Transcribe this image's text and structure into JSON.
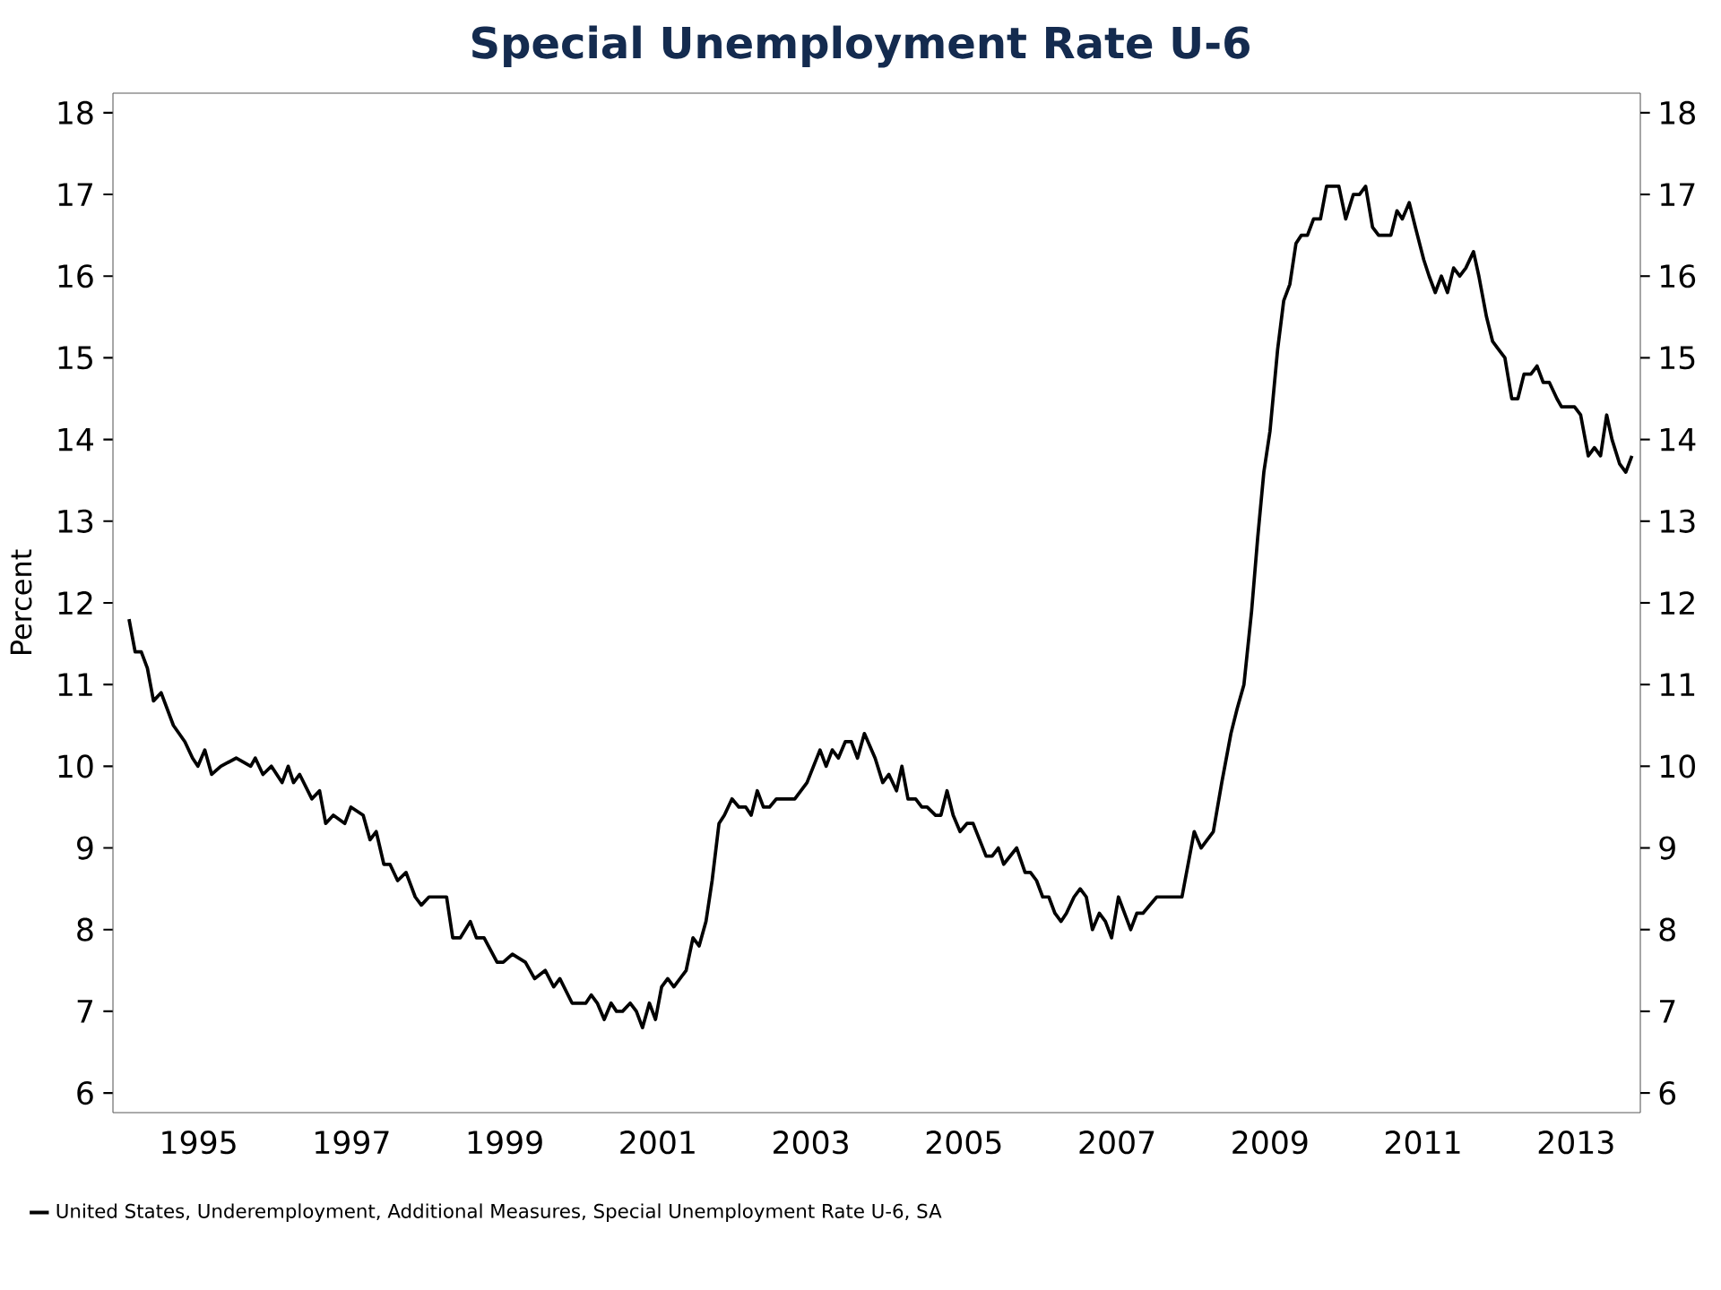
{
  "chart_data": {
    "type": "line",
    "title": "Special Unemployment Rate U-6",
    "ylabel": "Percent",
    "xlim": [
      1993.88,
      2013.84
    ],
    "ylim": [
      5.76,
      18.24
    ],
    "y2lim": [
      5.76,
      18.24
    ],
    "xticks": [
      1995,
      1997,
      1999,
      2001,
      2003,
      2005,
      2007,
      2009,
      2011,
      2013
    ],
    "yticks": [
      6,
      7,
      8,
      9,
      10,
      11,
      12,
      13,
      14,
      15,
      16,
      17,
      18
    ],
    "y2ticks": [
      6,
      7,
      8,
      9,
      10,
      11,
      12,
      13,
      14,
      15,
      16,
      17,
      18
    ],
    "legend": "bottom",
    "series": [
      {
        "name": "United States, Underemployment, Additional Measures, Special Unemployment Rate U-6, SA",
        "color": "#000000",
        "x": [
          1994.09,
          1994.17,
          1994.25,
          1994.33,
          1994.41,
          1994.51,
          1994.67,
          1994.82,
          1994.92,
          1994.99,
          1995.08,
          1995.17,
          1995.29,
          1995.49,
          1995.68,
          1995.74,
          1995.84,
          1995.95,
          1996.09,
          1996.17,
          1996.24,
          1996.32,
          1996.48,
          1996.58,
          1996.66,
          1996.76,
          1996.91,
          1996.99,
          1997.15,
          1997.24,
          1997.32,
          1997.42,
          1997.5,
          1997.6,
          1997.71,
          1997.83,
          1997.91,
          1998.01,
          1998.24,
          1998.32,
          1998.42,
          1998.55,
          1998.63,
          1998.73,
          1998.9,
          1998.98,
          1999.1,
          1999.27,
          1999.39,
          1999.53,
          1999.64,
          1999.72,
          1999.88,
          2000.06,
          2000.13,
          2000.21,
          2000.3,
          2000.39,
          2000.46,
          2000.54,
          2000.64,
          2000.72,
          2000.8,
          2000.89,
          2000.97,
          2001.05,
          2001.13,
          2001.21,
          2001.29,
          2001.37,
          2001.46,
          2001.54,
          2001.63,
          2001.71,
          2001.8,
          2001.87,
          2001.97,
          2002.06,
          2002.15,
          2002.22,
          2002.3,
          2002.38,
          2002.46,
          2002.55,
          2002.79,
          2002.95,
          2003.12,
          2003.2,
          2003.28,
          2003.36,
          2003.45,
          2003.53,
          2003.61,
          2003.7,
          2003.84,
          2003.94,
          2004.02,
          2004.12,
          2004.19,
          2004.27,
          2004.37,
          2004.45,
          2004.52,
          2004.63,
          2004.7,
          2004.78,
          2004.86,
          2004.95,
          2005.04,
          2005.12,
          2005.29,
          2005.37,
          2005.45,
          2005.52,
          2005.69,
          2005.8,
          2005.87,
          2005.95,
          2006.03,
          2006.11,
          2006.19,
          2006.27,
          2006.34,
          2006.44,
          2006.52,
          2006.6,
          2006.68,
          2006.77,
          2006.85,
          2006.93,
          2007.02,
          2007.18,
          2007.26,
          2007.34,
          2007.52,
          2007.79,
          2007.85,
          2007.93,
          2008.01,
          2008.1,
          2008.26,
          2008.37,
          2008.49,
          2008.57,
          2008.66,
          2008.76,
          2008.84,
          2008.92,
          2009.0,
          2009.1,
          2009.18,
          2009.26,
          2009.34,
          2009.41,
          2009.49,
          2009.57,
          2009.66,
          2009.74,
          2009.9,
          2009.99,
          2010.09,
          2010.17,
          2010.25,
          2010.34,
          2010.42,
          2010.58,
          2010.66,
          2010.73,
          2010.82,
          2010.9,
          2011.01,
          2011.08,
          2011.16,
          2011.24,
          2011.32,
          2011.4,
          2011.48,
          2011.56,
          2011.66,
          2011.73,
          2011.83,
          2011.91,
          2011.99,
          2012.07,
          2012.16,
          2012.24,
          2012.32,
          2012.41,
          2012.49,
          2012.57,
          2012.65,
          2012.75,
          2012.81,
          2012.98,
          2013.06,
          2013.16,
          2013.24,
          2013.32,
          2013.4,
          2013.47,
          2013.57,
          2013.65,
          2013.73
        ],
        "values": [
          11.8,
          11.4,
          11.4,
          11.2,
          10.8,
          10.9,
          10.5,
          10.3,
          10.1,
          10.0,
          10.2,
          9.9,
          10.0,
          10.1,
          10.0,
          10.1,
          9.9,
          10.0,
          9.8,
          10.0,
          9.8,
          9.9,
          9.6,
          9.7,
          9.3,
          9.4,
          9.3,
          9.5,
          9.4,
          9.1,
          9.2,
          8.8,
          8.8,
          8.6,
          8.7,
          8.4,
          8.3,
          8.4,
          8.4,
          7.9,
          7.9,
          8.1,
          7.9,
          7.9,
          7.6,
          7.6,
          7.7,
          7.6,
          7.4,
          7.5,
          7.3,
          7.4,
          7.1,
          7.1,
          7.2,
          7.1,
          6.9,
          7.1,
          7.0,
          7.0,
          7.1,
          7.0,
          6.8,
          7.1,
          6.9,
          7.3,
          7.4,
          7.3,
          7.4,
          7.5,
          7.9,
          7.8,
          8.1,
          8.6,
          9.3,
          9.4,
          9.6,
          9.5,
          9.5,
          9.4,
          9.7,
          9.5,
          9.5,
          9.6,
          9.6,
          9.8,
          10.2,
          10.0,
          10.2,
          10.1,
          10.3,
          10.3,
          10.1,
          10.4,
          10.1,
          9.8,
          9.9,
          9.7,
          10.0,
          9.6,
          9.6,
          9.5,
          9.5,
          9.4,
          9.4,
          9.7,
          9.4,
          9.2,
          9.3,
          9.3,
          8.9,
          8.9,
          9.0,
          8.8,
          9.0,
          8.7,
          8.7,
          8.6,
          8.4,
          8.4,
          8.2,
          8.1,
          8.2,
          8.4,
          8.5,
          8.4,
          8.0,
          8.2,
          8.1,
          7.9,
          8.4,
          8.0,
          8.2,
          8.2,
          8.4,
          8.4,
          8.4,
          8.8,
          9.2,
          9.0,
          9.2,
          9.8,
          10.4,
          10.7,
          11.0,
          11.9,
          12.8,
          13.6,
          14.1,
          15.1,
          15.7,
          15.9,
          16.4,
          16.5,
          16.5,
          16.7,
          16.7,
          17.1,
          17.1,
          16.7,
          17.0,
          17.0,
          17.1,
          16.6,
          16.5,
          16.5,
          16.8,
          16.7,
          16.9,
          16.6,
          16.2,
          16.0,
          15.8,
          16.0,
          15.8,
          16.1,
          16.0,
          16.1,
          16.3,
          16.0,
          15.5,
          15.2,
          15.1,
          15.0,
          14.5,
          14.5,
          14.8,
          14.8,
          14.9,
          14.7,
          14.7,
          14.5,
          14.4,
          14.4,
          14.3,
          13.8,
          13.9,
          13.8,
          14.3,
          14.0,
          13.7,
          13.6,
          13.8
        ]
      }
    ]
  }
}
